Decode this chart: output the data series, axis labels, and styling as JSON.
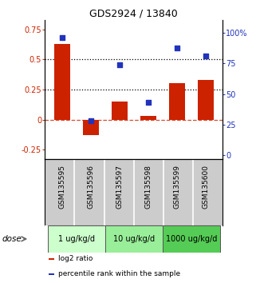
{
  "title": "GDS2924 / 13840",
  "samples": [
    "GSM135595",
    "GSM135596",
    "GSM135597",
    "GSM135598",
    "GSM135599",
    "GSM135600"
  ],
  "log2_ratio": [
    0.63,
    -0.13,
    0.15,
    0.03,
    0.3,
    0.33
  ],
  "percentile_rank": [
    96,
    28,
    74,
    43,
    88,
    81
  ],
  "dose_groups": [
    {
      "label": "1 ug/kg/d",
      "cols": [
        0,
        1
      ],
      "color": "#ccffcc"
    },
    {
      "label": "10 ug/kg/d",
      "cols": [
        2,
        3
      ],
      "color": "#99ee99"
    },
    {
      "label": "1000 ug/kg/d",
      "cols": [
        4,
        5
      ],
      "color": "#55cc55"
    }
  ],
  "bar_color": "#cc2200",
  "dot_color": "#2233bb",
  "sample_bg_color": "#cccccc",
  "sample_border_color": "#999999",
  "ylim_left": [
    -0.33,
    0.83
  ],
  "ylim_right": [
    -3.32,
    110.8
  ],
  "yticks_left": [
    -0.25,
    0,
    0.25,
    0.5,
    0.75
  ],
  "yticks_right": [
    0,
    25,
    50,
    75,
    100
  ],
  "ytick_labels_left": [
    "-0.25",
    "0",
    "0.25",
    "0.5",
    "0.75"
  ],
  "ytick_labels_right": [
    "0",
    "25",
    "50",
    "75",
    "100%"
  ],
  "hlines": [
    0.25,
    0.5
  ],
  "legend_items": [
    {
      "color": "#cc2200",
      "label": "log2 ratio"
    },
    {
      "color": "#2233bb",
      "label": "percentile rank within the sample"
    }
  ]
}
